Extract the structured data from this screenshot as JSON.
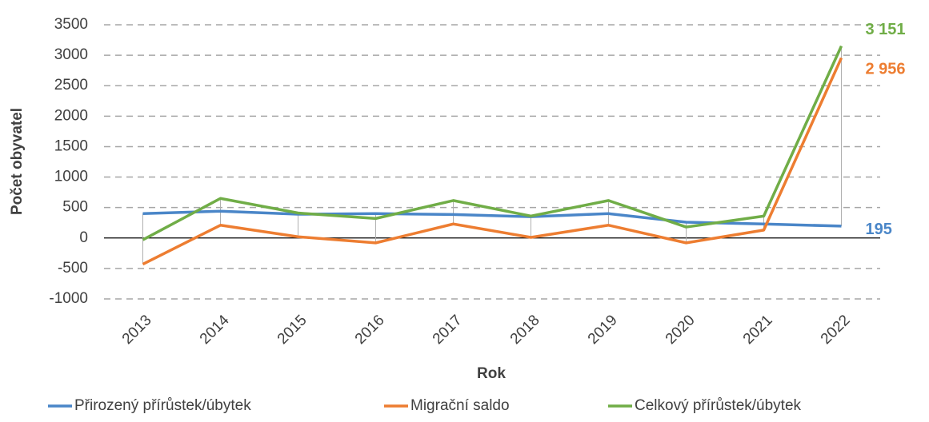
{
  "chart_data": {
    "type": "line",
    "categories": [
      "2013",
      "2014",
      "2015",
      "2016",
      "2017",
      "2018",
      "2019",
      "2020",
      "2021",
      "2022"
    ],
    "series": [
      {
        "name": "Přirozený přírůstek/úbytek",
        "color": "#4a86c8",
        "values": [
          400,
          440,
          390,
          400,
          385,
          350,
          400,
          260,
          230,
          195
        ],
        "value_labels": [
          null,
          null,
          null,
          null,
          null,
          null,
          null,
          null,
          null,
          "195"
        ]
      },
      {
        "name": "Migrační saldo",
        "color": "#ed7d31",
        "values": [
          -430,
          210,
          20,
          -80,
          230,
          10,
          210,
          -80,
          130,
          2956
        ],
        "value_labels": [
          null,
          null,
          null,
          null,
          null,
          null,
          null,
          null,
          null,
          "2 956"
        ]
      },
      {
        "name": "Celkový přírůstek/úbytek",
        "color": "#70ad47",
        "values": [
          -30,
          650,
          410,
          320,
          615,
          360,
          615,
          180,
          360,
          3151
        ],
        "value_labels": [
          null,
          null,
          null,
          null,
          null,
          null,
          null,
          null,
          null,
          "3 151"
        ]
      }
    ],
    "ylim": [
      -1000,
      3500
    ],
    "yticks": [
      -1000,
      -500,
      0,
      500,
      1000,
      1500,
      2000,
      2500,
      3000,
      3500
    ],
    "grid": true,
    "legend": "bottom",
    "x_label": "Rok",
    "y_label": "Počet obyvatel"
  }
}
